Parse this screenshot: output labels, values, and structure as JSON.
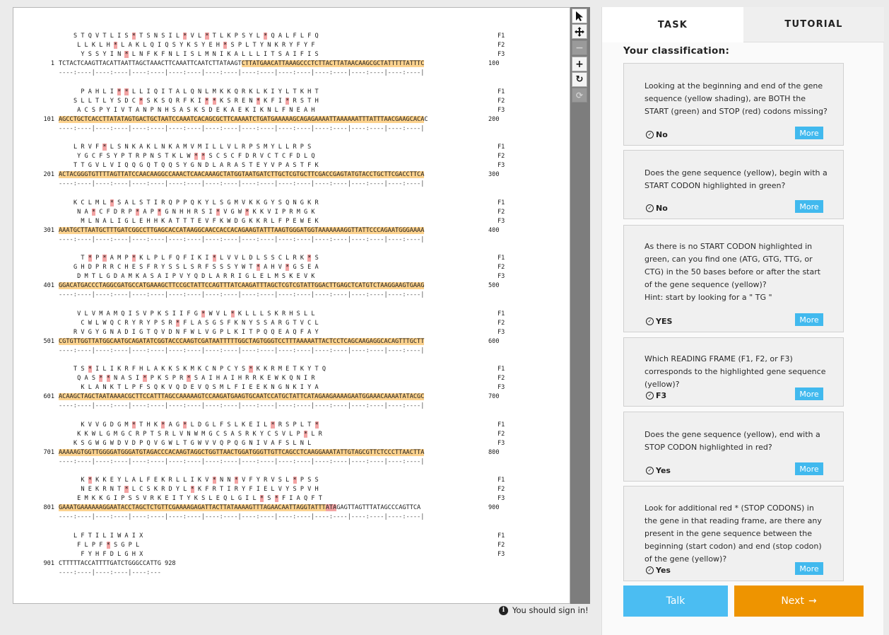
{
  "sequence": {
    "blocks": [
      {
        "f1": "S T Q V T L I S * T S N S I L * V L * T L K P S Y L * Q A L F L F Q",
        "f2": " L L K L H * L A K L Q I Q S Y K S Y E H * S P L T Y N K R Y F Y F",
        "f3": "  Y S S Y I N * L N F K F N L I S L M N I K A L L L I T S A I F I S",
        "num": "1",
        "dna": "TCTACTCAAGTTACATTAATTAGCTAAACTTCAAATTCAATCTTATAAGTCTTATGAACATTAAAGCCCTCTTACTTATAACAAGCGCTATTTTTATTTC",
        "hl_start": 50,
        "hl_end": 100,
        "end": "100"
      },
      {
        "f1": "  P A H L I * * L L I Q I T A L Q N L M K K Q R K L K I Y L T K H T",
        "f2": "S L L T L Y S D C * S K S Q R F K I * * K S R E N * K F I * R S T H",
        "f3": " A C S P Y I V T A N P N H S A S K S D E K A E K I K N L F N E A H",
        "num": "101",
        "dna": "AGCCTGCTCACCTTATATAGTGACTGCTAATCCAAATCACAGCGCTTCAAAATCTGATGAAAAAGCAGAGAAAATTAAAAAATTTATTTAACGAAGCACAC",
        "hl_start": 0,
        "hl_end": 100,
        "end": "200"
      },
      {
        "f1": "L R V F * L S N K A K L N K A M V M I L L V L R P S M Y L L R P S",
        "f2": " Y G C F S Y P T R P N S T K L W * * S C S C F D R V C T C F D L Q",
        "f3": "T T G V L V I Q Q G Q T Q Q S Y G N D L A R A S T E Y V P A S T F K",
        "num": "201",
        "dna": "ACTACGGGTGTTTTAGTTATCCAACAAGGCCAAACTCAACAAAGCTATGGTAATGATCTTGCTCGTGCTTCGACCGAGTATGTACCTGCTTCGACCTTCA",
        "hl_start": 0,
        "hl_end": 100,
        "end": "300"
      },
      {
        "f1": "K C L M L * S A L S T I R Q P P Q K Y L S G M V K K G Y S Q N G K R",
        "f2": " N A * C F D R P * A P * G N H H R S I * V G W * K K V I P R M G K",
        "f3": "  M L N A L I G L E H H K A T T T E V F K W D G K K R L F P E W E K",
        "num": "301",
        "dna": "AAATGCTTAATGCTTTGATCGGCCTTGAGCACCATAAGGCAACCACCACAGAAGTATTTAAGTGGGATGGTAAAAAAAGGTTATTCCCAGAATGGGAAAA",
        "hl_start": 0,
        "hl_end": 100,
        "end": "400"
      },
      {
        "f1": "  T * P * A M P * K L P L F Q F I K I * L V V L D L S S C L R K * S",
        "f2": "G H D P R R C H E S F R Y S S L S R F S S S Y W T * A H V * G S E A",
        "f3": " D M T L G D A M K A S A I P V Y Q D L A R R I G L E L M S K E V K",
        "num": "401",
        "dna": "GGACATGACCCTAGGCGATGCCATGAAAGCTTCCGCTATTCCAGTTTATCAAGATTTAGCTCGTCGTATTGGACTTGAGCTCATGTCTAAGGAAGTGAAG",
        "hl_start": 0,
        "hl_end": 100,
        "end": "500"
      },
      {
        "f1": " V L V M A M Q I S V P K S I I F G * W V L * K L L L S K R H S L L",
        "f2": "  C W L W Q C R Y R Y P S R * F L A S G S F K N Y S S A R G T V C L",
        "f3": "R V G Y G N A D I G T Q V D N F W L V G P L K I T P Q Q E A Q F A Y",
        "num": "501",
        "dna": "CGTGTTGGTTATGGCAATGCAGATATCGGTACCCAAGTCGATAATTTTTGGCTAGTGGGTCCTTTAAAAATTACTCCTCAGCAAGAGGCACAGTTTGCTT",
        "hl_start": 0,
        "hl_end": 100,
        "end": "600"
      },
      {
        "f1": "T S * I L I K R F H L A K K S K M K C N P C Y S * K K R M E T K Y T Q",
        "f2": " Q A S * * N A S I * P K S P R * S A I H A I H R R K E W K Q N I R",
        "f3": "  K L A N K T L P F S Q K V Q D E V Q S M L F I E E K N G N K I Y A",
        "num": "601",
        "dna": "ACAAGCTAGCTAATAAAACGCTTCCATTTAGCCAAAAAGTCCAAGATGAAGTGCAATCCATGCTATTCATAGAAGAAAAGAATGGAAACAAAATATACGC",
        "hl_start": 0,
        "hl_end": 100,
        "end": "700"
      },
      {
        "f1": "  K V V G D G M * T H K * A G * L D G L F S L K E I L * R S P L T *",
        "f2": " K K W L G M G C R P T S R L V N W M G C S A S R K Y C S V L P * L R",
        "f3": "K S G W G W D V D P Q V G W L T G W V V Q P Q G N I V A F S L N L",
        "num": "701",
        "dna": "AAAAAGTGGTTGGGGATGGGATGTAGACCCACAAGTAGGCTGGTTAACTGGATGGGTTGTTCAGCCTCAAGGAAATATTGTAGCGTTCTCCCTTAACTTA",
        "hl_start": 0,
        "hl_end": 100,
        "end": "800"
      },
      {
        "f1": "  K * K K E Y L A L F E K R L L I K V * N N * V F Y R V S L * P S S",
        "f2": "  N E K R N T * L C S K R D Y L * K F R T I R Y F I E L V Y S P V H",
        "f3": " E M K K G I P S S V R K E I T Y K S L E Q L G I L * S * F I A Q F T",
        "num": "801",
        "dna": "GAAATGAAAAAAGGAATACCTAGCTCTGTTCGAAAAGAGATTACTTATAAAAGTTTAGAACAATTAGGTATTTATAGAGTTAGTTTATAGCCCAGTTCA",
        "hl_start": 0,
        "hl_end": 73,
        "stop_start": 73,
        "stop_end": 76,
        "end": "900"
      },
      {
        "f1": "L F T I L I W A I X",
        "f2": " F L P F * S G P L",
        "f3": "  F Y H F D L G H X",
        "num": "901",
        "dna": "CTTTTTACCATTTTGATCTGGGCCATTG",
        "hl_start": 0,
        "hl_end": 0,
        "end": "928"
      }
    ],
    "frame_labels": [
      "F1",
      "F2",
      "F3"
    ],
    "ruler": "----:----|----:----|----:----|----:----|----:----|----:----|----:----|----:----|----:----|----:----|",
    "ruler_last": "----:----|----:----|----:---"
  },
  "toolbar": {
    "tools": [
      "pointer-icon",
      "move-icon",
      "minus-icon",
      "plus-icon",
      "reset-icon",
      "rotate-icon"
    ]
  },
  "signin": {
    "text": "You should sign in!"
  },
  "panel": {
    "tabs": [
      {
        "label": "TASK"
      },
      {
        "label": "TUTORIAL"
      }
    ],
    "title": "Your classification:",
    "questions": [
      {
        "text": "Looking at the beginning and end of the gene sequence (yellow shading), are BOTH the START (green) and STOP (red) codons missing?",
        "answer": "No",
        "more": "More"
      },
      {
        "text": "Does the gene sequence (yellow), begin with a START CODON highlighted in green?",
        "answer": "No",
        "more": "More"
      },
      {
        "text": "As there is no START CODON highlighted in green, can you find one (ATG, GTG, TTG, or CTG) in the 50 bases before or after the start of the gene sequence (yellow)?",
        "hint": "Hint: start by looking for a \" TG \"",
        "answer": "YES",
        "more": "More"
      },
      {
        "text": "Which READING FRAME (F1, F2, or F3) corresponds to the highlighted gene sequence (yellow)?",
        "answer": "F3",
        "more": "More"
      },
      {
        "text": "Does the gene sequence (yellow), end with a STOP CODON highlighted in red?",
        "answer": "Yes",
        "more": "More"
      },
      {
        "text": "Look for additional red * (STOP CODONS) in the gene in that reading frame, are there any present in the gene sequence between the beginning (start codon) and end (stop codon) of the gene (yellow)?",
        "answer": "Yes",
        "more": "More"
      }
    ],
    "talk_label": "Talk",
    "next_label": "Next",
    "next_arrow": "→"
  },
  "colors": {
    "gene_highlight": "#fcd28e",
    "stop_highlight": "#f3a3a3",
    "talk_button": "#4bbdf2",
    "next_button": "#ee9400",
    "more_button": "#41b9ee"
  }
}
